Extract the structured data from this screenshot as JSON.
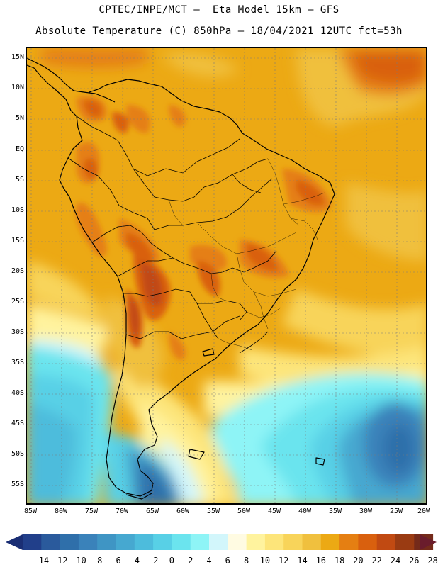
{
  "header": {
    "line1": "CPTEC/INPE/MCT –  Eta Model 15km – GFS",
    "line2": "Absolute Temperature (C) 850hPa – 18/04/2021 12UTC fct=53h"
  },
  "axes": {
    "lat_labels": [
      "15N",
      "10N",
      "5N",
      "EQ",
      "5S",
      "10S",
      "15S",
      "20S",
      "25S",
      "30S",
      "35S",
      "40S",
      "45S",
      "50S",
      "55S"
    ],
    "lon_labels": [
      "85W",
      "80W",
      "75W",
      "70W",
      "65W",
      "60W",
      "55W",
      "50W",
      "45W",
      "40W",
      "35W",
      "30W",
      "25W",
      "20W"
    ]
  },
  "map": {
    "region": "South America",
    "variable": "Absolute Temperature (C)",
    "level": "850hPa",
    "lat_range": [
      -58,
      17
    ],
    "lon_range": [
      -86,
      -20
    ]
  },
  "colorbar": {
    "labels": [
      "-14",
      "-12",
      "-10",
      "-8",
      "-6",
      "-4",
      "-2",
      "0",
      "2",
      "4",
      "6",
      "8",
      "10",
      "12",
      "14",
      "16",
      "18",
      "20",
      "22",
      "24",
      "26",
      "28"
    ],
    "colors": [
      "#213f8a",
      "#2a5a9c",
      "#2f6faa",
      "#3a82ba",
      "#3f95c4",
      "#46a8d0",
      "#4dbcdc",
      "#58d0e6",
      "#6be4ee",
      "#8ef4f6",
      "#d2f6fb",
      "#fffbe2",
      "#fff39e",
      "#fde57a",
      "#f8d45a",
      "#f0c03e",
      "#eca914",
      "#e57f12",
      "#d9600e",
      "#c14a12",
      "#9a3b12",
      "#742a1a"
    ],
    "under_color": "#1a2e74",
    "over_color": "#6a1c2c"
  }
}
